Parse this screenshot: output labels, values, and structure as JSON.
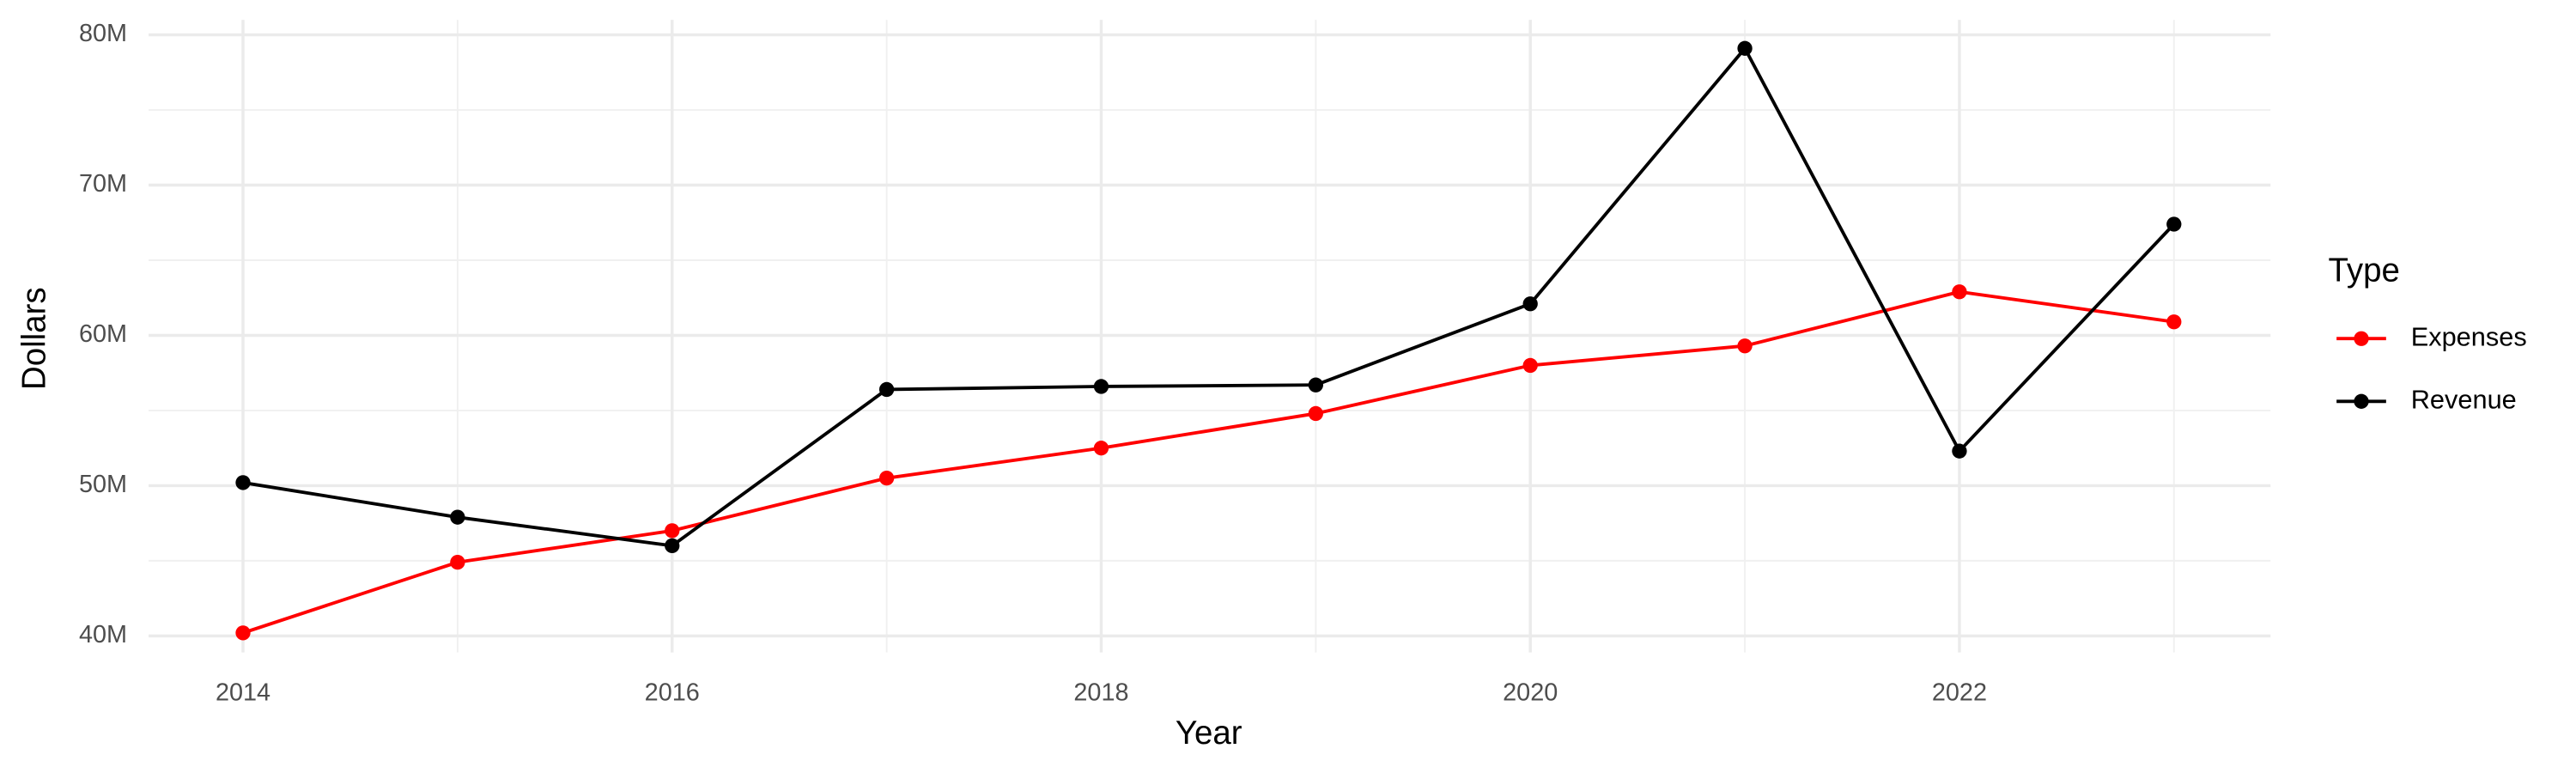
{
  "chart_data": {
    "type": "line",
    "x_label": "Year",
    "y_label": "Dollars",
    "legend_title": "Type",
    "legend_position": "right",
    "grid": true,
    "x": [
      2014,
      2015,
      2016,
      2017,
      2018,
      2019,
      2020,
      2021,
      2022,
      2023
    ],
    "xlim": [
      2013.56,
      2023.45
    ],
    "xticks": [
      2014,
      2016,
      2018,
      2020,
      2022
    ],
    "ylim": [
      38900000,
      81000000
    ],
    "yticks": [
      {
        "value": 40000000,
        "label": "40M"
      },
      {
        "value": 50000000,
        "label": "50M"
      },
      {
        "value": 60000000,
        "label": "60M"
      },
      {
        "value": 70000000,
        "label": "70M"
      },
      {
        "value": 80000000,
        "label": "80M"
      }
    ],
    "series": [
      {
        "name": "Expenses",
        "color": "#ff0000",
        "values": [
          40200000,
          44900000,
          47000000,
          50500000,
          52500000,
          54800000,
          58000000,
          59300000,
          62900000,
          60900000
        ]
      },
      {
        "name": "Revenue",
        "color": "#000000",
        "values": [
          50200000,
          47900000,
          46000000,
          56400000,
          56600000,
          56700000,
          62100000,
          79100000,
          52300000,
          67400000
        ]
      }
    ]
  }
}
